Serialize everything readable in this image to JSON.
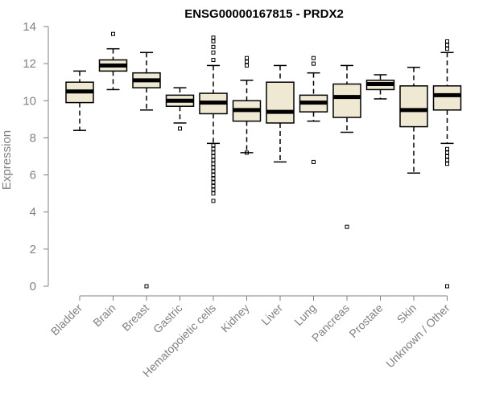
{
  "chart_data": {
    "type": "boxplot",
    "title": "ENSG00000167815 - PRDX2",
    "xlabel": "",
    "ylabel": "Expression",
    "ylim": [
      0,
      14
    ],
    "yticks": [
      0,
      2,
      4,
      6,
      8,
      10,
      12,
      14
    ],
    "box_color": "#efe8d2",
    "categories": [
      "Bladder",
      "Brain",
      "Breast",
      "Gastric",
      "Hematopoietic cells",
      "Kidney",
      "Liver",
      "Lung",
      "Pancreas",
      "Prostate",
      "Skin",
      "Unknown / Other"
    ],
    "boxes": [
      {
        "name": "Bladder",
        "whisker_low": 8.4,
        "q1": 9.9,
        "median": 10.5,
        "q3": 11.0,
        "whisker_high": 11.6,
        "outliers": []
      },
      {
        "name": "Brain",
        "whisker_low": 10.6,
        "q1": 11.6,
        "median": 11.9,
        "q3": 12.2,
        "whisker_high": 12.8,
        "outliers": [
          13.6
        ]
      },
      {
        "name": "Breast",
        "whisker_low": 9.5,
        "q1": 10.7,
        "median": 11.1,
        "q3": 11.5,
        "whisker_high": 12.6,
        "outliers": [
          0.0
        ]
      },
      {
        "name": "Gastric",
        "whisker_low": 8.8,
        "q1": 9.7,
        "median": 10.0,
        "q3": 10.3,
        "whisker_high": 10.7,
        "outliers": [
          8.5
        ]
      },
      {
        "name": "Hematopoietic cells",
        "whisker_low": 7.7,
        "q1": 9.3,
        "median": 9.9,
        "q3": 10.4,
        "whisker_high": 11.9,
        "outliers": [
          12.2,
          12.6,
          12.9,
          13.2,
          13.4,
          7.6,
          7.4,
          7.2,
          7.0,
          6.8,
          6.6,
          6.4,
          6.2,
          6.0,
          5.8,
          5.6,
          5.4,
          5.2,
          5.0,
          4.6
        ]
      },
      {
        "name": "Kidney",
        "whisker_low": 7.2,
        "q1": 8.9,
        "median": 9.5,
        "q3": 10.0,
        "whisker_high": 11.1,
        "outliers": [
          11.9,
          12.1,
          12.3,
          7.2
        ]
      },
      {
        "name": "Liver",
        "whisker_low": 6.7,
        "q1": 8.8,
        "median": 9.4,
        "q3": 11.0,
        "whisker_high": 11.9,
        "outliers": []
      },
      {
        "name": "Lung",
        "whisker_low": 8.9,
        "q1": 9.4,
        "median": 9.9,
        "q3": 10.3,
        "whisker_high": 11.5,
        "outliers": [
          12.0,
          12.3,
          6.7
        ]
      },
      {
        "name": "Pancreas",
        "whisker_low": 8.3,
        "q1": 9.1,
        "median": 10.2,
        "q3": 10.9,
        "whisker_high": 11.9,
        "outliers": [
          3.2
        ]
      },
      {
        "name": "Prostate",
        "whisker_low": 10.1,
        "q1": 10.6,
        "median": 10.9,
        "q3": 11.1,
        "whisker_high": 11.4,
        "outliers": []
      },
      {
        "name": "Skin",
        "whisker_low": 6.1,
        "q1": 8.6,
        "median": 9.5,
        "q3": 10.8,
        "whisker_high": 11.8,
        "outliers": []
      },
      {
        "name": "Unknown / Other",
        "whisker_low": 7.7,
        "q1": 9.5,
        "median": 10.3,
        "q3": 10.8,
        "whisker_high": 12.6,
        "outliers": [
          12.8,
          13.0,
          13.2,
          7.4,
          7.2,
          7.0,
          6.8,
          6.6,
          0.0
        ]
      }
    ]
  }
}
